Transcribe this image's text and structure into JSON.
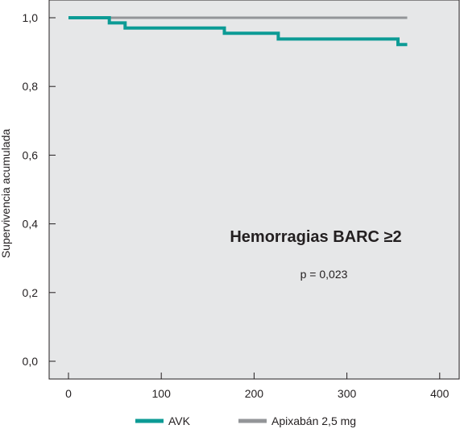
{
  "chart_data": {
    "type": "line",
    "step": true,
    "title": "",
    "xlabel": "",
    "ylabel": "Supervivencia acumulada",
    "xlim": [
      0,
      400
    ],
    "ylim": [
      0,
      1.0
    ],
    "x_ticks": [
      0,
      100,
      200,
      300,
      400
    ],
    "y_ticks": [
      0.0,
      0.2,
      0.4,
      0.6,
      0.8,
      1.0
    ],
    "x_tick_labels": [
      "0",
      "100",
      "200",
      "300",
      "400"
    ],
    "y_tick_labels": [
      "0,0",
      "0,2",
      "0,4",
      "0,6",
      "0,8",
      "1,0"
    ],
    "grid": false,
    "legend": "bottom",
    "background": "#e6e7e8",
    "series": [
      {
        "name": "AVK",
        "color": "#0c9b95",
        "x": [
          0,
          44,
          44,
          61,
          61,
          168,
          168,
          226,
          226,
          355,
          355,
          365
        ],
        "y": [
          1.0,
          1.0,
          0.985,
          0.985,
          0.97,
          0.97,
          0.955,
          0.955,
          0.938,
          0.938,
          0.922,
          0.922
        ]
      },
      {
        "name": "Apixabán 2,5 mg",
        "color": "#939598",
        "x": [
          0,
          365
        ],
        "y": [
          1.0,
          1.0
        ]
      }
    ],
    "annotations": {
      "title": "Hemorragias BARC ≥2",
      "pvalue": "p = 0,023"
    }
  }
}
